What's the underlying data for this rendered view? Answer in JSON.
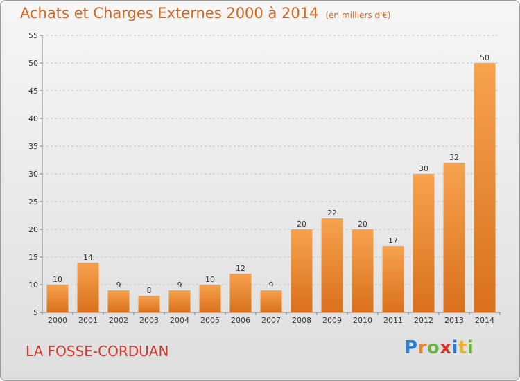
{
  "header": {
    "title": "Achats et Charges Externes 2000 à 2014",
    "subtitle": "(en milliers d'€)"
  },
  "footer": {
    "commune": "LA FOSSE-CORDUAN",
    "logo_text": "Proxiti"
  },
  "colors": {
    "bar_light": "#f7a24e",
    "bar_dark": "#d9701c",
    "title": "#d9651e",
    "commune": "#d9362b"
  },
  "chart_data": {
    "type": "bar",
    "title": "Achats et Charges Externes 2000 à 2014",
    "subtitle": "(en milliers d'€)",
    "categories": [
      "2000",
      "2001",
      "2002",
      "2003",
      "2004",
      "2005",
      "2006",
      "2007",
      "2008",
      "2009",
      "2010",
      "2011",
      "2012",
      "2013",
      "2014"
    ],
    "values": [
      10,
      14,
      9,
      8,
      9,
      10,
      12,
      9,
      20,
      22,
      20,
      17,
      30,
      32,
      50
    ],
    "ylim": [
      5,
      55
    ],
    "yticks": [
      5,
      10,
      15,
      20,
      25,
      30,
      35,
      40,
      45,
      50,
      55
    ],
    "grid": true
  }
}
